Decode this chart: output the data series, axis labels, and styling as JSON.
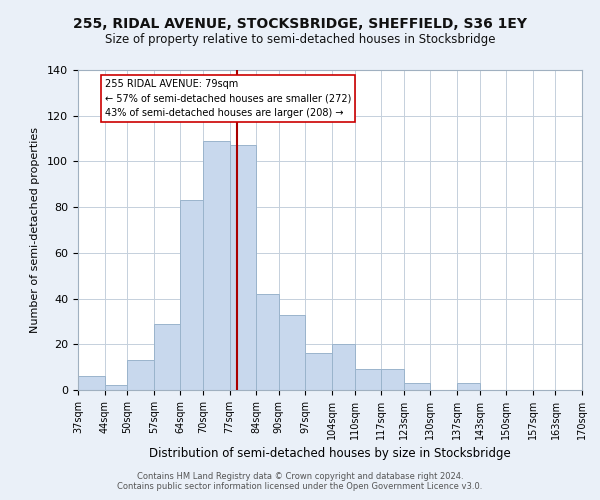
{
  "title": "255, RIDAL AVENUE, STOCKSBRIDGE, SHEFFIELD, S36 1EY",
  "subtitle": "Size of property relative to semi-detached houses in Stocksbridge",
  "xlabel": "Distribution of semi-detached houses by size in Stocksbridge",
  "ylabel": "Number of semi-detached properties",
  "bar_color": "#c8d8ed",
  "bar_edge_color": "#9ab4cc",
  "bins": [
    37,
    44,
    50,
    57,
    64,
    70,
    77,
    84,
    90,
    97,
    104,
    110,
    117,
    123,
    130,
    137,
    143,
    150,
    157,
    163,
    170
  ],
  "counts": [
    6,
    2,
    13,
    29,
    83,
    109,
    107,
    42,
    33,
    16,
    20,
    9,
    9,
    3,
    0,
    3,
    0,
    0,
    0,
    0
  ],
  "tick_labels": [
    "37sqm",
    "44sqm",
    "50sqm",
    "57sqm",
    "64sqm",
    "70sqm",
    "77sqm",
    "84sqm",
    "90sqm",
    "97sqm",
    "104sqm",
    "110sqm",
    "117sqm",
    "123sqm",
    "130sqm",
    "137sqm",
    "143sqm",
    "150sqm",
    "157sqm",
    "163sqm",
    "170sqm"
  ],
  "ylim": [
    0,
    140
  ],
  "yticks": [
    0,
    20,
    40,
    60,
    80,
    100,
    120,
    140
  ],
  "vline_x": 79,
  "vline_color": "#aa0000",
  "annotation_title": "255 RIDAL AVENUE: 79sqm",
  "annotation_line1": "← 57% of semi-detached houses are smaller (272)",
  "annotation_line2": "43% of semi-detached houses are larger (208) →",
  "annotation_box_color": "#ffffff",
  "annotation_box_edge": "#cc0000",
  "footer1": "Contains HM Land Registry data © Crown copyright and database right 2024.",
  "footer2": "Contains public sector information licensed under the Open Government Licence v3.0.",
  "bg_color": "#eaf0f8",
  "plot_bg_color": "#ffffff",
  "grid_color": "#c5d0dc",
  "title_fontsize": 10,
  "subtitle_fontsize": 8.5,
  "ylabel_fontsize": 8,
  "xlabel_fontsize": 8.5,
  "tick_fontsize": 7,
  "footer_fontsize": 6
}
